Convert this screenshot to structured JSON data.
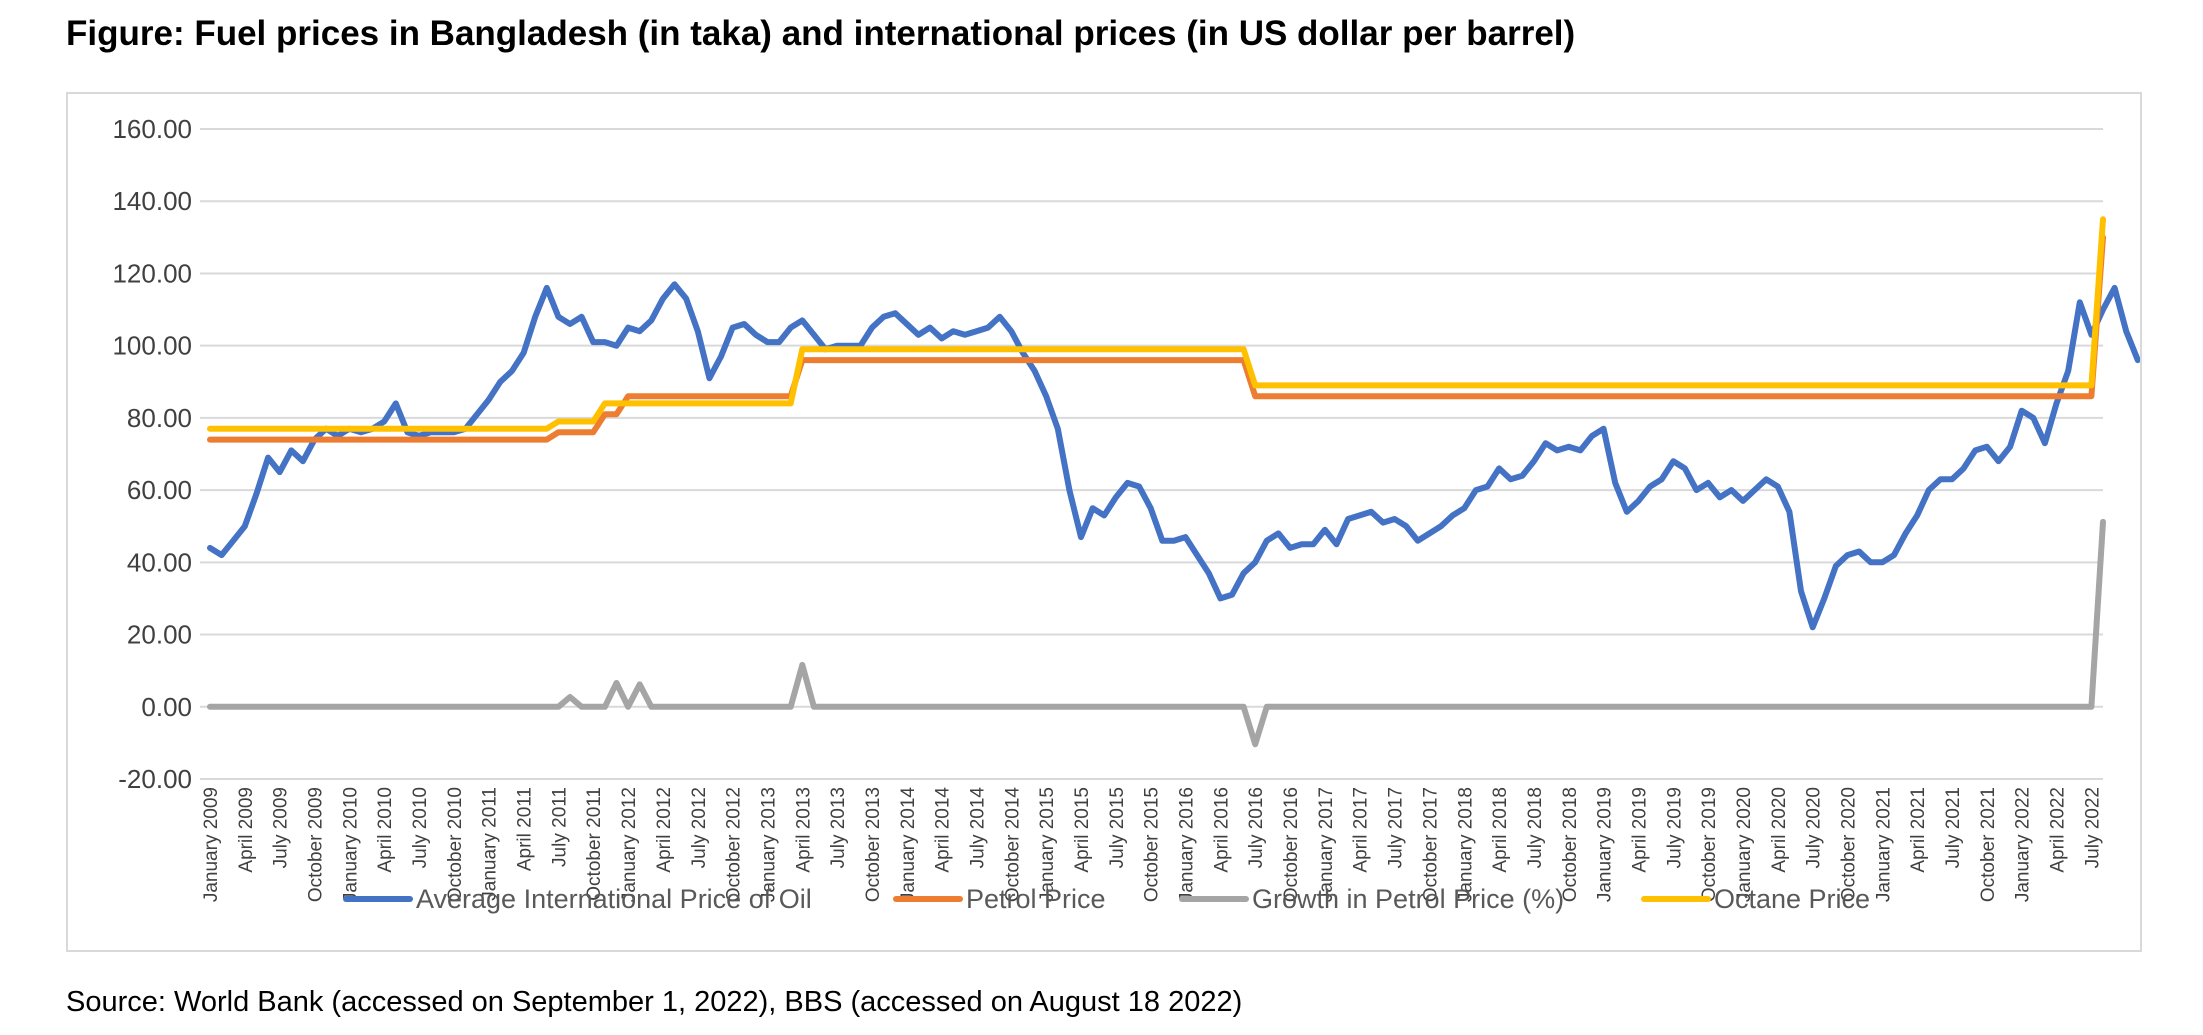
{
  "figure_title": "Figure: Fuel prices in Bangladesh (in taka) and international prices (in US dollar per barrel)",
  "source_note": "Source: World Bank (accessed on September 1, 2022), BBS (accessed on August 18 2022)",
  "chart_data": {
    "type": "line",
    "title": "Fuel prices in Bangladesh (in taka) and international prices (in US dollar per barrel)",
    "xlabel": "",
    "ylabel": "",
    "ylim": [
      -20,
      160
    ],
    "y_ticks": [
      160,
      140,
      120,
      100,
      80,
      60,
      40,
      20,
      0,
      -20
    ],
    "y_tick_labels": [
      "160.00",
      "140.00",
      "120.00",
      "100.00",
      "80.00",
      "60.00",
      "40.00",
      "20.00",
      "0.00",
      "-20.00"
    ],
    "grid": true,
    "legend_position": "bottom",
    "x_start": "January 2009",
    "x_end": "August 2022",
    "n_points": 164,
    "x_tick_labels": [
      "January 2009",
      "April 2009",
      "July 2009",
      "October 2009",
      "January 2010",
      "April 2010",
      "July 2010",
      "October 2010",
      "January 2011",
      "April 2011",
      "July 2011",
      "October 2011",
      "January 2012",
      "April 2012",
      "July 2012",
      "October 2012",
      "January 2013",
      "April 2013",
      "July 2013",
      "October 2013",
      "January 2014",
      "April 2014",
      "July 2014",
      "October 2014",
      "January 2015",
      "April 2015",
      "July 2015",
      "October 2015",
      "January 2016",
      "April 2016",
      "July 2016",
      "October 2016",
      "January 2017",
      "April 2017",
      "July 2017",
      "October 2017",
      "January 2018",
      "April 2018",
      "July 2018",
      "October 2018",
      "January 2019",
      "April 2019",
      "July 2019",
      "October 2019",
      "January 2020",
      "April 2020",
      "July 2020",
      "October 2020",
      "January 2021",
      "April 2021",
      "July 2021",
      "October 2021",
      "January 2022",
      "April 2022",
      "July 2022"
    ],
    "series": [
      {
        "name": "Average International Price of Oil",
        "color": "#4472c4",
        "values": [
          44,
          42,
          46,
          50,
          59,
          69,
          65,
          71,
          68,
          74,
          77,
          75,
          77,
          76,
          77,
          79,
          84,
          76,
          75,
          76,
          76,
          76,
          77,
          81,
          85,
          90,
          93,
          98,
          108,
          116,
          108,
          106,
          108,
          101,
          101,
          100,
          105,
          104,
          107,
          113,
          117,
          113,
          104,
          91,
          97,
          105,
          106,
          103,
          101,
          101,
          105,
          107,
          103,
          99,
          100,
          100,
          100,
          105,
          108,
          109,
          106,
          103,
          105,
          102,
          104,
          103,
          104,
          105,
          108,
          104,
          98,
          93,
          86,
          77,
          60,
          47,
          55,
          53,
          58,
          62,
          61,
          55,
          46,
          46,
          47,
          42,
          37,
          30,
          31,
          37,
          40,
          46,
          48,
          44,
          45,
          45,
          49,
          45,
          52,
          53,
          54,
          51,
          52,
          50,
          46,
          48,
          50,
          53,
          55,
          60,
          61,
          66,
          63,
          64,
          68,
          73,
          71,
          72,
          71,
          75,
          77,
          62,
          54,
          57,
          61,
          63,
          68,
          66,
          60,
          62,
          58,
          60,
          57,
          60,
          63,
          61,
          54,
          32,
          22,
          30,
          39,
          42,
          43,
          40,
          40,
          42,
          48,
          53,
          60,
          63,
          63,
          66,
          71,
          72,
          68,
          72,
          82,
          80,
          73,
          84,
          93,
          112,
          103,
          110,
          116,
          104,
          96
        ]
      },
      {
        "name": "Petrol Price",
        "color": "#ed7d31",
        "values": [
          74,
          74,
          74,
          74,
          74,
          74,
          74,
          74,
          74,
          74,
          74,
          74,
          74,
          74,
          74,
          74,
          74,
          74,
          74,
          74,
          74,
          74,
          74,
          74,
          74,
          74,
          74,
          74,
          74,
          74,
          76,
          76,
          76,
          76,
          81,
          81,
          86,
          86,
          86,
          86,
          86,
          86,
          86,
          86,
          86,
          86,
          86,
          86,
          86,
          86,
          86,
          96,
          96,
          96,
          96,
          96,
          96,
          96,
          96,
          96,
          96,
          96,
          96,
          96,
          96,
          96,
          96,
          96,
          96,
          96,
          96,
          96,
          96,
          96,
          96,
          96,
          96,
          96,
          96,
          96,
          96,
          96,
          96,
          96,
          96,
          96,
          96,
          96,
          96,
          96,
          86,
          86,
          86,
          86,
          86,
          86,
          86,
          86,
          86,
          86,
          86,
          86,
          86,
          86,
          86,
          86,
          86,
          86,
          86,
          86,
          86,
          86,
          86,
          86,
          86,
          86,
          86,
          86,
          86,
          86,
          86,
          86,
          86,
          86,
          86,
          86,
          86,
          86,
          86,
          86,
          86,
          86,
          86,
          86,
          86,
          86,
          86,
          86,
          86,
          86,
          86,
          86,
          86,
          86,
          86,
          86,
          86,
          86,
          86,
          86,
          86,
          86,
          86,
          86,
          86,
          86,
          86,
          86,
          86,
          86,
          86,
          86,
          86,
          130
        ]
      },
      {
        "name": "Growth in Petrol Price (%)",
        "color": "#a5a5a5",
        "values": [
          0,
          0,
          0,
          0,
          0,
          0,
          0,
          0,
          0,
          0,
          0,
          0,
          0,
          0,
          0,
          0,
          0,
          0,
          0,
          0,
          0,
          0,
          0,
          0,
          0,
          0,
          0,
          0,
          0,
          0,
          0,
          2.7,
          0,
          0,
          0,
          6.6,
          0,
          6.2,
          0,
          0,
          0,
          0,
          0,
          0,
          0,
          0,
          0,
          0,
          0,
          0,
          0,
          11.6,
          0,
          0,
          0,
          0,
          0,
          0,
          0,
          0,
          0,
          0,
          0,
          0,
          0,
          0,
          0,
          0,
          0,
          0,
          0,
          0,
          0,
          0,
          0,
          0,
          0,
          0,
          0,
          0,
          0,
          0,
          0,
          0,
          0,
          0,
          0,
          0,
          0,
          0,
          -10.4,
          0,
          0,
          0,
          0,
          0,
          0,
          0,
          0,
          0,
          0,
          0,
          0,
          0,
          0,
          0,
          0,
          0,
          0,
          0,
          0,
          0,
          0,
          0,
          0,
          0,
          0,
          0,
          0,
          0,
          0,
          0,
          0,
          0,
          0,
          0,
          0,
          0,
          0,
          0,
          0,
          0,
          0,
          0,
          0,
          0,
          0,
          0,
          0,
          0,
          0,
          0,
          0,
          0,
          0,
          0,
          0,
          0,
          0,
          0,
          0,
          0,
          0,
          0,
          0,
          0,
          0,
          0,
          0,
          0,
          0,
          0,
          0,
          51.2
        ]
      },
      {
        "name": "Octane Price",
        "color": "#ffc000",
        "values": [
          77,
          77,
          77,
          77,
          77,
          77,
          77,
          77,
          77,
          77,
          77,
          77,
          77,
          77,
          77,
          77,
          77,
          77,
          77,
          77,
          77,
          77,
          77,
          77,
          77,
          77,
          77,
          77,
          77,
          77,
          79,
          79,
          79,
          79,
          84,
          84,
          84,
          84,
          84,
          84,
          84,
          84,
          84,
          84,
          84,
          84,
          84,
          84,
          84,
          84,
          84,
          99,
          99,
          99,
          99,
          99,
          99,
          99,
          99,
          99,
          99,
          99,
          99,
          99,
          99,
          99,
          99,
          99,
          99,
          99,
          99,
          99,
          99,
          99,
          99,
          99,
          99,
          99,
          99,
          99,
          99,
          99,
          99,
          99,
          99,
          99,
          99,
          99,
          99,
          99,
          89,
          89,
          89,
          89,
          89,
          89,
          89,
          89,
          89,
          89,
          89,
          89,
          89,
          89,
          89,
          89,
          89,
          89,
          89,
          89,
          89,
          89,
          89,
          89,
          89,
          89,
          89,
          89,
          89,
          89,
          89,
          89,
          89,
          89,
          89,
          89,
          89,
          89,
          89,
          89,
          89,
          89,
          89,
          89,
          89,
          89,
          89,
          89,
          89,
          89,
          89,
          89,
          89,
          89,
          89,
          89,
          89,
          89,
          89,
          89,
          89,
          89,
          89,
          89,
          89,
          89,
          89,
          89,
          89,
          89,
          89,
          89,
          89,
          135
        ]
      }
    ]
  }
}
